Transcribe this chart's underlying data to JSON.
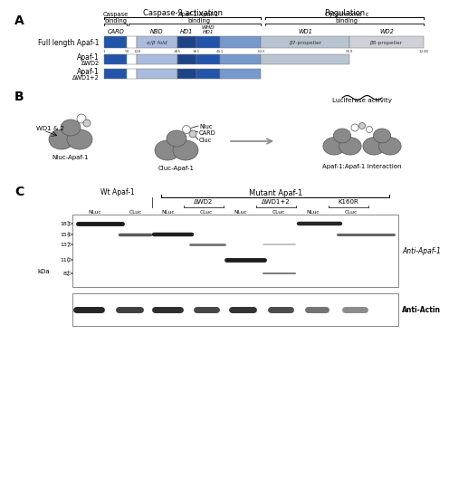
{
  "bg_color": "#f0f0f0",
  "panel_A": {
    "header1": "Caspase-9 activation",
    "header2": "Regulation",
    "sub1": "Caspase\nbinding",
    "sub2": "Apaf-1:Apaf-1\nbinding",
    "sub3": "Cytochrome  c\nbinding",
    "full_length_label": "Full length Apaf-1",
    "mutant1_label": "Apaf-1",
    "mutant1_sub": "ΔWD2",
    "mutant2_label": "Apaf-1",
    "mutant2_sub": "ΔWD1+2",
    "numbers": [
      "1",
      "90",
      "128",
      "285",
      "361",
      "451",
      "613",
      "959",
      "1248"
    ],
    "number_positions": [
      1,
      90,
      128,
      285,
      361,
      451,
      613,
      959,
      1248
    ],
    "alphaB_label": "α/β fold",
    "b7_label": "β7-propeller",
    "b8_label": "β8-propeller",
    "segs_fl": [
      [
        0,
        90,
        "#2255aa"
      ],
      [
        90,
        128,
        "#ffffff"
      ],
      [
        128,
        285,
        "#aabbdd"
      ],
      [
        285,
        361,
        "#1e4488"
      ],
      [
        361,
        451,
        "#2255aa"
      ],
      [
        451,
        613,
        "#7799cc"
      ],
      [
        613,
        959,
        "#b8c4d0"
      ],
      [
        959,
        1248,
        "#d0d0d8"
      ]
    ],
    "segs_dwd2": [
      [
        0,
        90,
        "#2255aa"
      ],
      [
        90,
        128,
        "#ffffff"
      ],
      [
        128,
        285,
        "#aabbdd"
      ],
      [
        285,
        361,
        "#1e4488"
      ],
      [
        361,
        451,
        "#2255aa"
      ],
      [
        451,
        613,
        "#7799cc"
      ],
      [
        613,
        959,
        "#b8c4d0"
      ]
    ],
    "segs_dwd12": [
      [
        0,
        90,
        "#2255aa"
      ],
      [
        90,
        128,
        "#ffffff"
      ],
      [
        128,
        285,
        "#aabbdd"
      ],
      [
        285,
        361,
        "#1e4488"
      ],
      [
        361,
        451,
        "#2255aa"
      ],
      [
        451,
        613,
        "#7799cc"
      ]
    ]
  },
  "panel_B": {
    "nluc_label": "Nluc-Apaf-1",
    "cluc_label": "Cluc-Apaf-1",
    "interaction_label": "Apaf-1:Apaf-1 interaction",
    "luciferase_label": "Luciferase activity",
    "wd_label": "WD1 & 2",
    "nluc_tag": "Nluc",
    "card_tag": "CARD",
    "cluc_tag": "Cluc",
    "blob_color": "#8a8a8a"
  },
  "panel_C": {
    "mutant_title": "Mutant Apaf-1",
    "wt_label": "Wt Apaf-1",
    "mutants": [
      "ΔWD2",
      "ΔWD1+2",
      "K160R"
    ],
    "lane_labels": [
      "NLuc",
      "CLuc",
      "NLuc",
      "CLuc",
      "NLuc",
      "CLuc",
      "NLuc",
      "CLuc"
    ],
    "kda_label": "kDa",
    "mw_markers": [
      "183",
      "154",
      "137",
      "110",
      "82"
    ],
    "antibody1": "Anti-Apaf-1",
    "antibody2": "Anti-Actin"
  }
}
